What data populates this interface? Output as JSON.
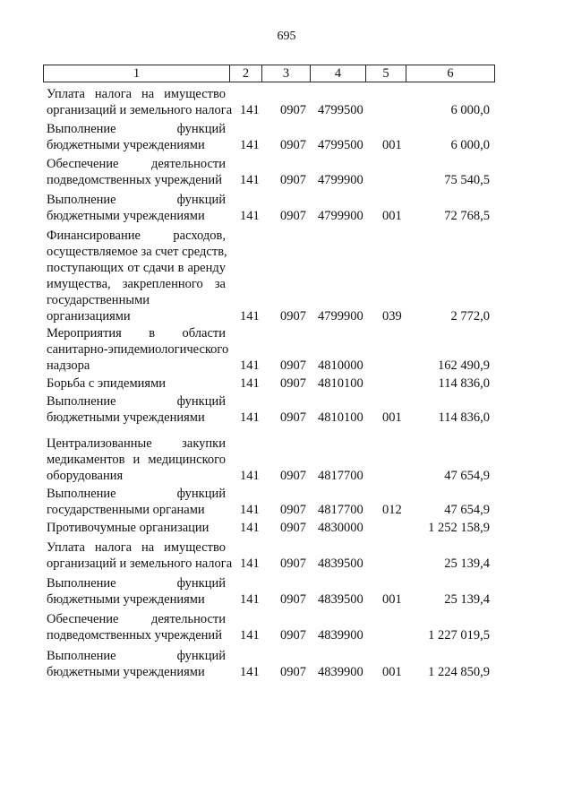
{
  "page_number": "695",
  "header": [
    "1",
    "2",
    "3",
    "4",
    "5",
    "6"
  ],
  "rows": [
    {
      "lines": [
        "Уплата налога на имущество",
        "организаций и земельного налога"
      ],
      "c2": "141",
      "c3": "0907",
      "c4": "4799500",
      "c5": "",
      "c6": "6 000,0"
    },
    {
      "lines": [
        "Выполнение функций",
        "бюджетными учреждениями"
      ],
      "c2": "141",
      "c3": "0907",
      "c4": "4799500",
      "c5": "001",
      "c6": "6 000,0"
    },
    {
      "lines": [
        "Обеспечение деятельности",
        "подведомственных учреждений"
      ],
      "c2": "141",
      "c3": "0907",
      "c4": "4799900",
      "c5": "",
      "c6": "75 540,5"
    },
    {
      "lines": [
        "Выполнение функций",
        "бюджетными учреждениями"
      ],
      "c2": "141",
      "c3": "0907",
      "c4": "4799900",
      "c5": "001",
      "c6": "72 768,5"
    },
    {
      "lines": [
        "Финансирование расходов,",
        "осуществляемое за счет средств,",
        "поступающих от сдачи в аренду",
        "имущества, закрепленного за",
        "государственными",
        "организациями"
      ],
      "c2": "141",
      "c3": "0907",
      "c4": "4799900",
      "c5": "039",
      "c6": "2 772,0"
    },
    {
      "lines": [
        "Мероприятия в области",
        "санитарно-эпидемиологического",
        "надзора"
      ],
      "c2": "141",
      "c3": "0907",
      "c4": "4810000",
      "c5": "",
      "c6": "162 490,9"
    },
    {
      "lines": [
        "Борьба с эпидемиями"
      ],
      "c2": "141",
      "c3": "0907",
      "c4": "4810100",
      "c5": "",
      "c6": "114 836,0"
    },
    {
      "lines": [
        "Выполнение функций",
        "бюджетными учреждениями"
      ],
      "c2": "141",
      "c3": "0907",
      "c4": "4810100",
      "c5": "001",
      "c6": "114 836,0"
    },
    {
      "lines": [
        "Централизованные закупки",
        "медикаментов и медицинского",
        "оборудования"
      ],
      "c2": "141",
      "c3": "0907",
      "c4": "4817700",
      "c5": "",
      "c6": "47 654,9"
    },
    {
      "lines": [
        "Выполнение функций",
        "государственными органами"
      ],
      "c2": "141",
      "c3": "0907",
      "c4": "4817700",
      "c5": "012",
      "c6": "47 654,9"
    },
    {
      "lines": [
        "Противочумные организации"
      ],
      "c2": "141",
      "c3": "0907",
      "c4": "4830000",
      "c5": "",
      "c6": "1 252 158,9"
    },
    {
      "lines": [
        "Уплата налога на имущество",
        "организаций и земельного налога"
      ],
      "c2": "141",
      "c3": "0907",
      "c4": "4839500",
      "c5": "",
      "c6": "25 139,4"
    },
    {
      "lines": [
        "Выполнение функций",
        "бюджетными учреждениями"
      ],
      "c2": "141",
      "c3": "0907",
      "c4": "4839500",
      "c5": "001",
      "c6": "25 139,4"
    },
    {
      "lines": [
        "Обеспечение деятельности",
        "подведомственных учреждений"
      ],
      "c2": "141",
      "c3": "0907",
      "c4": "4839900",
      "c5": "",
      "c6": "1 227 019,5"
    },
    {
      "lines": [
        "Выполнение функций",
        "бюджетными учреждениями"
      ],
      "c2": "141",
      "c3": "0907",
      "c4": "4839900",
      "c5": "001",
      "c6": "1 224 850,9"
    }
  ]
}
